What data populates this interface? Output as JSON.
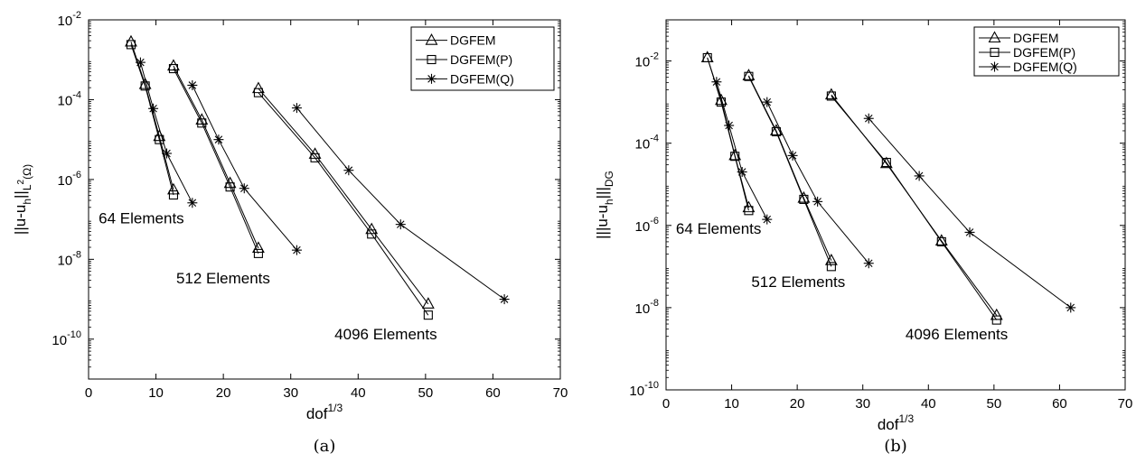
{
  "chart_data": [
    {
      "type": "line",
      "panel": "a",
      "caption": "(a)",
      "xlabel": "dof",
      "xlabel_sup": "1/3",
      "ylabel": "||u-u",
      "ylabel_h": "h",
      "ylabel_mid": "||",
      "ylabel_sub": "L",
      "ylabel_sup": "2",
      "ylabel_end": "(Ω)",
      "xlim": [
        0,
        70
      ],
      "ylim": [
        1e-11,
        0.01
      ],
      "yscale": "log",
      "xticks": [
        "0",
        "10",
        "20",
        "30",
        "40",
        "50",
        "60",
        "70"
      ],
      "xtick_values": [
        0,
        10,
        20,
        30,
        40,
        50,
        60,
        70
      ],
      "yticks": [
        {
          "value": 0.01,
          "base": "10",
          "exp": "-2"
        },
        {
          "value": 0.0001,
          "base": "10",
          "exp": "-4"
        },
        {
          "value": 1e-06,
          "base": "10",
          "exp": "-6"
        },
        {
          "value": 1e-08,
          "base": "10",
          "exp": "-8"
        },
        {
          "value": 1e-10,
          "base": "10",
          "exp": "-10"
        }
      ],
      "legend": "top-right",
      "series": [
        {
          "name": "DGFEM",
          "marker": "triangle",
          "groups": [
            [
              [
                6.3,
                0.0028
              ],
              [
                8.4,
                0.00024
              ],
              [
                10.5,
                1.2e-05
              ],
              [
                12.6,
                5.5e-07
              ]
            ],
            [
              [
                12.6,
                0.0007
              ],
              [
                16.8,
                3.1e-05
              ],
              [
                21.0,
                8e-07
              ],
              [
                25.2,
                1.9e-08
              ]
            ],
            [
              [
                25.2,
                0.00019
              ],
              [
                33.6,
                4.3e-06
              ],
              [
                42.0,
                5.6e-08
              ],
              [
                50.4,
                7.6e-10
              ]
            ]
          ]
        },
        {
          "name": "DGFEM(P)",
          "marker": "square",
          "groups": [
            [
              [
                6.3,
                0.0024
              ],
              [
                8.4,
                0.00022
              ],
              [
                10.5,
                1e-05
              ],
              [
                12.6,
                4.1e-07
              ]
            ],
            [
              [
                12.6,
                0.0006
              ],
              [
                16.8,
                2.6e-05
              ],
              [
                21.0,
                6.5e-07
              ],
              [
                25.2,
                1.4e-08
              ]
            ],
            [
              [
                25.2,
                0.00015
              ],
              [
                33.6,
                3.5e-06
              ],
              [
                42.0,
                4.3e-08
              ],
              [
                50.4,
                4e-10
              ]
            ]
          ]
        },
        {
          "name": "DGFEM(Q)",
          "marker": "asterisk",
          "groups": [
            [
              [
                7.7,
                0.00086
              ],
              [
                9.6,
                6e-05
              ],
              [
                11.6,
                4.5e-06
              ],
              [
                15.4,
                2.6e-07
              ]
            ],
            [
              [
                15.4,
                0.00023
              ],
              [
                19.3,
                1e-05
              ],
              [
                23.1,
                6e-07
              ],
              [
                30.9,
                1.7e-08
              ]
            ],
            [
              [
                30.9,
                6.2e-05
              ],
              [
                38.6,
                1.7e-06
              ],
              [
                46.3,
                7.5e-08
              ],
              [
                61.7,
                1e-09
              ]
            ]
          ]
        }
      ],
      "annotations": [
        {
          "text": "64 Elements",
          "x": 1.5,
          "y": 8e-08
        },
        {
          "text": "512 Elements",
          "x": 13.0,
          "y": 2.5e-09
        },
        {
          "text": "4096 Elements",
          "x": 36.5,
          "y": 1e-10
        }
      ]
    },
    {
      "type": "line",
      "panel": "b",
      "caption": "(b)",
      "xlabel": "dof",
      "xlabel_sup": "1/3",
      "ylabel": "|||u-u",
      "ylabel_h": "h",
      "ylabel_mid": "|||",
      "ylabel_sub": "DG",
      "ylabel_sup": "",
      "ylabel_end": "",
      "xlim": [
        0,
        70
      ],
      "ylim": [
        1e-10,
        0.1
      ],
      "yscale": "log",
      "xticks": [
        "0",
        "10",
        "20",
        "30",
        "40",
        "50",
        "60",
        "70"
      ],
      "xtick_values": [
        0,
        10,
        20,
        30,
        40,
        50,
        60,
        70
      ],
      "yticks": [
        {
          "value": 0.01,
          "base": "10",
          "exp": "-2"
        },
        {
          "value": 0.0001,
          "base": "10",
          "exp": "-4"
        },
        {
          "value": 1e-06,
          "base": "10",
          "exp": "-6"
        },
        {
          "value": 1e-08,
          "base": "10",
          "exp": "-8"
        },
        {
          "value": 1e-10,
          "base": "10",
          "exp": "-10"
        }
      ],
      "legend": "top-right",
      "series": [
        {
          "name": "DGFEM",
          "marker": "triangle",
          "groups": [
            [
              [
                6.3,
                0.012
              ],
              [
                8.4,
                0.0011
              ],
              [
                10.5,
                5e-05
              ],
              [
                12.6,
                2.7e-06
              ]
            ],
            [
              [
                12.6,
                0.0044
              ],
              [
                16.8,
                0.0002
              ],
              [
                21.0,
                4.6e-06
              ],
              [
                25.2,
                1.4e-07
              ]
            ],
            [
              [
                25.2,
                0.0015
              ],
              [
                33.6,
                3.2e-05
              ],
              [
                42.0,
                4.2e-07
              ],
              [
                50.4,
                6.5e-09
              ]
            ]
          ]
        },
        {
          "name": "DGFEM(P)",
          "marker": "square",
          "groups": [
            [
              [
                6.3,
                0.012
              ],
              [
                8.4,
                0.001
              ],
              [
                10.5,
                4.8e-05
              ],
              [
                12.6,
                2.3e-06
              ]
            ],
            [
              [
                12.6,
                0.0042
              ],
              [
                16.8,
                0.00019
              ],
              [
                21.0,
                4.3e-06
              ],
              [
                25.2,
                1e-07
              ]
            ],
            [
              [
                25.2,
                0.0014
              ],
              [
                33.6,
                3.4e-05
              ],
              [
                42.0,
                4e-07
              ],
              [
                50.4,
                5e-09
              ]
            ]
          ]
        },
        {
          "name": "DGFEM(Q)",
          "marker": "asterisk",
          "groups": [
            [
              [
                7.7,
                0.0031
              ],
              [
                9.6,
                0.00027
              ],
              [
                11.6,
                2e-05
              ],
              [
                15.4,
                1.4e-06
              ]
            ],
            [
              [
                15.4,
                0.001
              ],
              [
                19.3,
                5e-05
              ],
              [
                23.1,
                3.8e-06
              ],
              [
                30.9,
                1.2e-07
              ]
            ],
            [
              [
                30.9,
                0.0004
              ],
              [
                38.6,
                1.6e-05
              ],
              [
                46.3,
                6.8e-07
              ],
              [
                61.7,
                1e-08
              ]
            ]
          ]
        }
      ],
      "annotations": [
        {
          "text": "64 Elements",
          "x": 1.5,
          "y": 6.3e-07
        },
        {
          "text": "512 Elements",
          "x": 13.0,
          "y": 3.2e-08
        },
        {
          "text": "4096 Elements",
          "x": 36.5,
          "y": 1.7e-09
        }
      ]
    }
  ]
}
